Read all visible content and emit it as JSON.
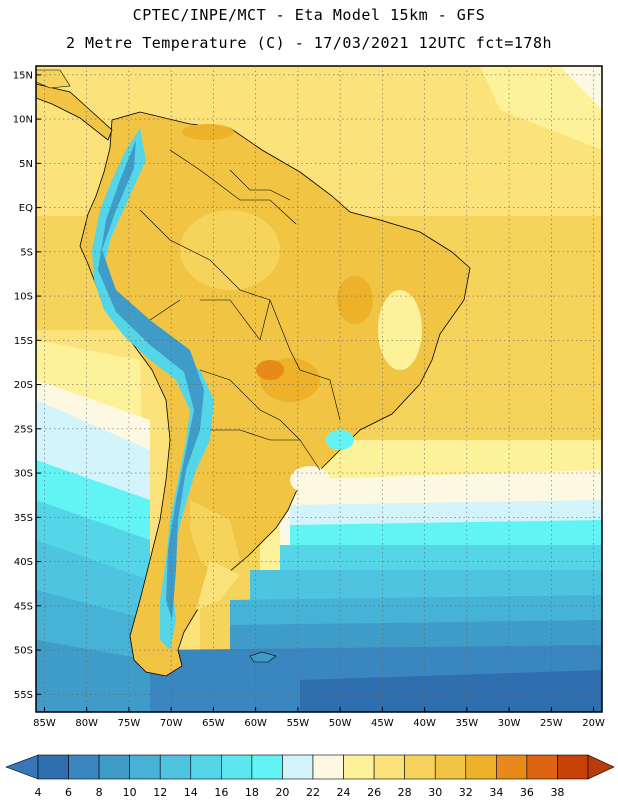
{
  "header": {
    "title_line1": "CPTEC/INPE/MCT -  Eta Model 15km - GFS",
    "title_line2": "2 Metre Temperature (C) - 17/03/2021 12UTC fct=178h"
  },
  "map": {
    "lat_labels": [
      "15N",
      "10N",
      "5N",
      "EQ",
      "5S",
      "10S",
      "15S",
      "20S",
      "25S",
      "30S",
      "35S",
      "40S",
      "45S",
      "50S",
      "55S"
    ],
    "lon_labels": [
      "85W",
      "80W",
      "75W",
      "70W",
      "65W",
      "60W",
      "55W",
      "50W",
      "45W",
      "40W",
      "35W",
      "30W",
      "25W",
      "20W"
    ],
    "lon_range": [
      -86,
      -19
    ],
    "lat_range": [
      -57,
      16
    ]
  },
  "colorbar": {
    "labels": [
      "4",
      "6",
      "8",
      "10",
      "12",
      "14",
      "16",
      "18",
      "20",
      "22",
      "24",
      "26",
      "28",
      "30",
      "32",
      "34",
      "36",
      "38"
    ],
    "colors": [
      "#2f6fb0",
      "#3a86c0",
      "#3f9cc8",
      "#45b2d6",
      "#4fc4e0",
      "#54d6e8",
      "#5ce6f0",
      "#62f4f4",
      "#d2f4fa",
      "#fdf8e2",
      "#fdf29a",
      "#fbe27a",
      "#f6d45c",
      "#f1c444",
      "#edb22a",
      "#e88a1a",
      "#dd6410",
      "#c84208"
    ],
    "low_color": "#3577b8",
    "high_color": "#b83c0a"
  }
}
